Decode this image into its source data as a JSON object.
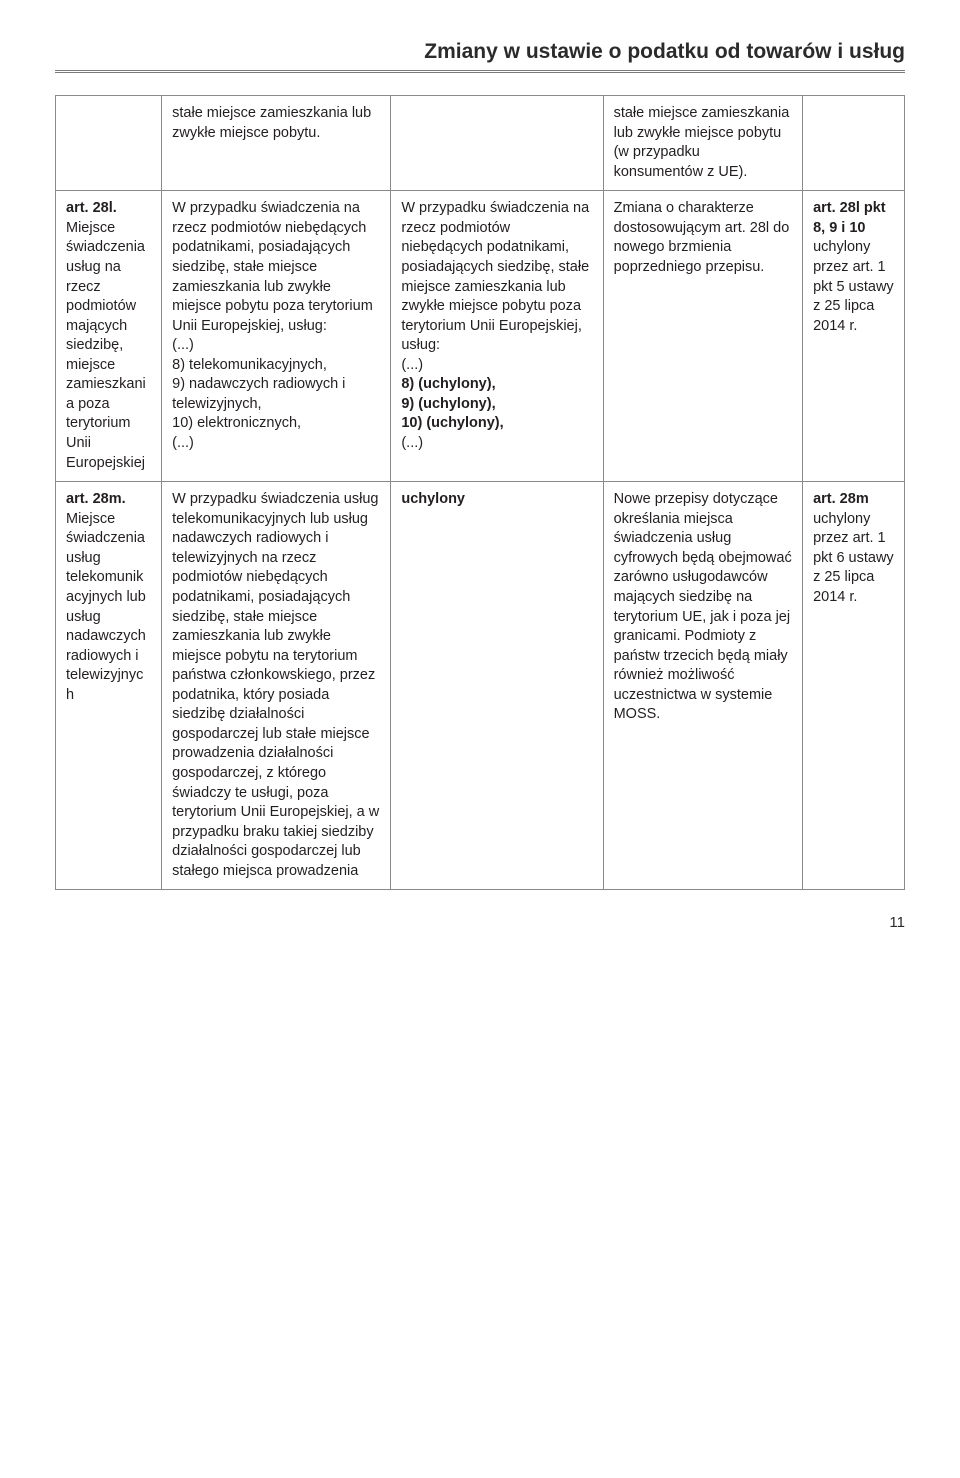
{
  "page": {
    "title": "Zmiany w ustawie o podatku od towarów i usług",
    "number": "11",
    "text_color": "#231f20",
    "border_color": "#8a8a8a",
    "background": "#ffffff"
  },
  "rows": [
    {
      "c0": "",
      "c1": "stałe miejsce zamieszkania lub zwykłe miejsce pobytu.",
      "c2": "",
      "c3": "stałe miejsce zamieszkania lub zwykłe miejsce pobytu (w przypadku konsumentów z UE).",
      "c4": ""
    },
    {
      "c0_bold": "art. 28l.",
      "c0_rest": " Miejsce świadczenia usług na rzecz podmiotów mających siedzibę, miejsce zamieszkania poza terytorium Unii Europejskiej",
      "c1": "W przypadku świadczenia na rzecz podmiotów niebędących podatnikami, posiadających siedzibę, stałe miejsce zamieszkania lub zwykłe miejsce pobytu poza terytorium Unii Europejskiej, usług:\n(...)\n 8) telekomunikacyjnych,\n9) nadawczych radiowych i telewizyjnych,\n10) elektronicznych,\n(...)",
      "c2_pre": "W przypadku świadczenia na rzecz podmiotów niebędących podatnikami, posiadających siedzibę, stałe miejsce zamieszkania lub zwykłe miejsce pobytu poza terytorium Unii Europejskiej, usług:\n(...)",
      "c2_b1": " 8) (uchylony),",
      "c2_b2": " 9) (uchylony),",
      "c2_b3": "10) (uchylony),",
      "c2_post": "(...)",
      "c3": "Zmiana o charakterze dostosowującym art. 28l do nowego brzmienia poprzedniego przepisu.",
      "c4_b1": "art. 28l",
      "c4_b2": "pkt 8, 9 i 10",
      "c4_rest": " uchylony przez art. 1 pkt 5 ustawy z 25 lipca 2014 r."
    },
    {
      "c0_bold": "art. 28m.",
      "c0_rest": " Miejsce świadczenia usług telekomunikacyjnych lub usług nadawczych radiowych i telewizyjnych",
      "c1": "W przypadku świadczenia usług telekomunikacyjnych lub usług nadawczych radiowych i telewizyjnych na rzecz podmiotów niebędących podatnikami, posiadających siedzibę, stałe miejsce zamieszkania lub zwykłe miejsce pobytu na terytorium państwa członkowskiego, przez podatnika, który posiada siedzibę działalności gospodarczej lub stałe miejsce prowadzenia działalności gospodarczej, z którego świadczy te usługi, poza terytorium Unii Europejskiej, a w przypadku braku takiej siedziby działalności gospodarczej lub stałego miejsca prowadzenia",
      "c2_bold": "uchylony",
      "c3": "Nowe przepisy dotyczące określania miejsca świadczenia usług cyfrowych będą obejmować zarówno usługodawców mających siedzibę na terytorium UE, jak i poza jej granicami. Podmioty z państw trzecich będą miały również możliwość uczestnictwa w systemie MOSS.",
      "c4_b1": "art. 28m",
      "c4_rest": " uchylony przez art. 1 pkt 6 ustawy z 25 lipca 2014 r."
    }
  ]
}
